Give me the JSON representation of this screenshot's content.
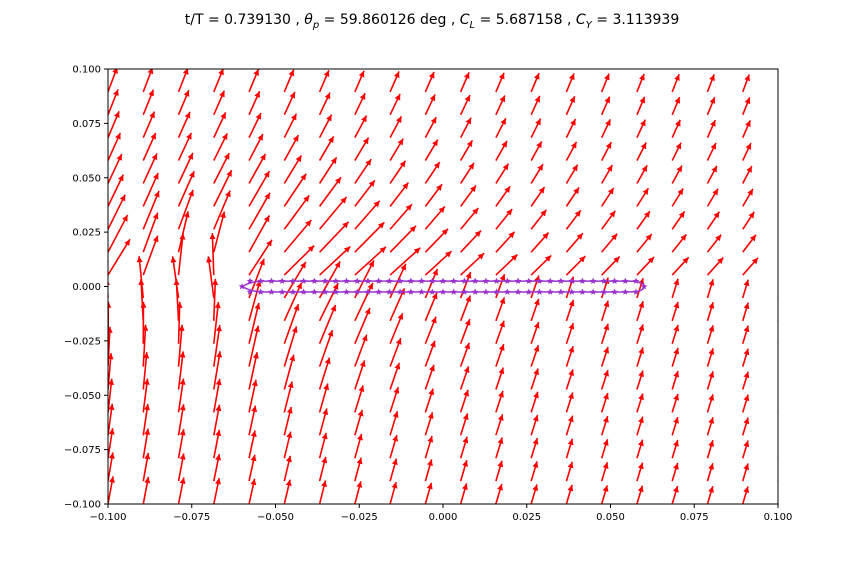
{
  "chart_data": {
    "type": "quiver",
    "title": {
      "part1": "t/T = 0.739130 , ",
      "theta_sym": "θ",
      "theta_sub": "p",
      "part2": " = 59.860126 deg , ",
      "cl_sym": "C",
      "cl_sub": "L",
      "part3": " = 5.687158 , ",
      "cy_sym": "C",
      "cy_sub": "Y",
      "part4": " = 3.113939"
    },
    "xlabel": "",
    "ylabel": "",
    "xlim": [
      -0.1,
      0.1
    ],
    "ylim": [
      -0.1,
      0.1
    ],
    "xticks": [
      -0.1,
      -0.075,
      -0.05,
      -0.025,
      0.0,
      0.025,
      0.05,
      0.075,
      0.1
    ],
    "yticks": [
      -0.1,
      -0.075,
      -0.05,
      -0.025,
      0.0,
      0.025,
      0.05,
      0.075,
      0.1
    ],
    "xtick_labels": [
      "−0.100",
      "−0.075",
      "−0.050",
      "−0.025",
      "0.000",
      "0.025",
      "0.050",
      "0.075",
      "0.100"
    ],
    "ytick_labels": [
      "−0.100",
      "−0.075",
      "−0.050",
      "−0.025",
      "0.000",
      "0.025",
      "0.050",
      "0.075",
      "0.100"
    ],
    "grid": false,
    "quiver": {
      "color": "#ff0000",
      "x_range": [
        -0.1,
        0.1
      ],
      "y_range": [
        -0.1,
        0.1
      ],
      "nx": 20,
      "ny": 20
    },
    "body": {
      "x_range": [
        -0.06,
        0.06
      ],
      "color": "#9a32cd",
      "marker_color": "#9a32cd",
      "upper_y": 0.0025,
      "lower_y": -0.0025
    }
  }
}
